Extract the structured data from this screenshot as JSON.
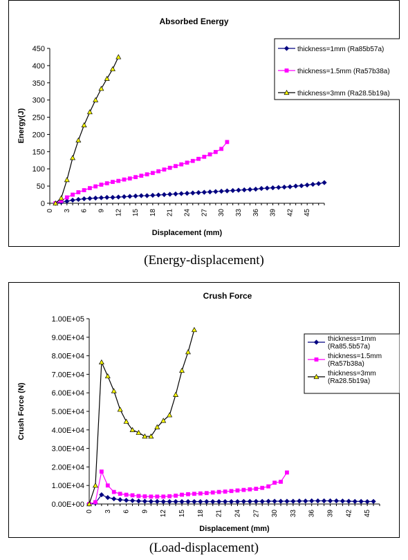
{
  "captions": {
    "energy": "(Energy-displacement)",
    "crush": "(Load-displacement)"
  },
  "chart_data": [
    {
      "type": "line",
      "title": "Absorbed Energy",
      "xlabel": "Displacement (mm)",
      "ylabel": "Energy(J)",
      "xlim": [
        0,
        48
      ],
      "ylim": [
        0,
        450
      ],
      "xticks": [
        "0",
        "3",
        "6",
        "9",
        "12",
        "15",
        "18",
        "21",
        "24",
        "27",
        "30",
        "33",
        "36",
        "39",
        "42",
        "45"
      ],
      "yticks": [
        "0",
        "50",
        "100",
        "150",
        "200",
        "250",
        "300",
        "350",
        "400",
        "450"
      ],
      "legend_position": "right",
      "grid": false,
      "series": [
        {
          "name": "thickness=1mm (Ra85b57a)",
          "color": "#000080",
          "marker": "diamond",
          "x": [
            1,
            2,
            3,
            4,
            5,
            6,
            7,
            8,
            9,
            10,
            11,
            12,
            13,
            14,
            15,
            16,
            17,
            18,
            19,
            20,
            21,
            22,
            23,
            24,
            25,
            26,
            27,
            28,
            29,
            30,
            31,
            32,
            33,
            34,
            35,
            36,
            37,
            38,
            39,
            40,
            41,
            42,
            43,
            44,
            45,
            46,
            47,
            48
          ],
          "y": [
            0,
            3,
            6,
            9,
            11,
            13,
            14,
            15,
            16,
            17,
            17,
            18,
            19,
            20,
            21,
            22,
            22,
            23,
            24,
            25,
            26,
            27,
            28,
            29,
            30,
            31,
            32,
            33,
            34,
            35,
            36,
            37,
            38,
            39,
            40,
            41,
            43,
            44,
            45,
            46,
            47,
            48,
            50,
            51,
            53,
            55,
            57,
            60
          ]
        },
        {
          "name": "thickness=1.5mm (Ra57b38a)",
          "color": "#ff00ff",
          "marker": "square",
          "x": [
            1,
            2,
            3,
            4,
            5,
            6,
            7,
            8,
            9,
            10,
            11,
            12,
            13,
            14,
            15,
            16,
            17,
            18,
            19,
            20,
            21,
            22,
            23,
            24,
            25,
            26,
            27,
            28,
            29,
            30,
            31
          ],
          "y": [
            0,
            7,
            17,
            25,
            32,
            38,
            44,
            49,
            54,
            58,
            62,
            65,
            69,
            72,
            76,
            80,
            84,
            88,
            93,
            98,
            103,
            108,
            113,
            118,
            123,
            129,
            135,
            142,
            149,
            158,
            178
          ]
        },
        {
          "name": "thickness=3mm (Ra28.5b19a)",
          "color": "#ffff00",
          "line_color": "#000000",
          "marker": "triangle",
          "x": [
            1,
            2,
            3,
            4,
            5,
            6,
            7,
            8,
            9,
            10,
            11,
            12
          ],
          "y": [
            0,
            15,
            68,
            132,
            183,
            227,
            265,
            300,
            333,
            362,
            390,
            425
          ]
        }
      ]
    },
    {
      "type": "line",
      "title": "Crush Force",
      "xlabel": "Displacement (mm)",
      "ylabel": "Crush Force (N)",
      "xlim": [
        0,
        47
      ],
      "ylim": [
        0,
        100000
      ],
      "xticks": [
        "0",
        "3",
        "6",
        "9",
        "12",
        "15",
        "18",
        "21",
        "24",
        "27",
        "30",
        "33",
        "36",
        "39",
        "42",
        "45"
      ],
      "yticks": [
        "0.00E+00",
        "1.00E+04",
        "2.00E+04",
        "3.00E+04",
        "4.00E+04",
        "5.00E+04",
        "6.00E+04",
        "7.00E+04",
        "8.00E+04",
        "9.00E+04",
        "1.00E+05"
      ],
      "legend_position": "right",
      "grid": false,
      "series": [
        {
          "name": "thickness=1mm (Ra85.5b57a)",
          "color": "#000080",
          "marker": "diamond",
          "x": [
            0,
            1,
            2,
            3,
            4,
            5,
            6,
            7,
            8,
            9,
            10,
            11,
            12,
            13,
            14,
            15,
            16,
            17,
            18,
            19,
            20,
            21,
            22,
            23,
            24,
            25,
            26,
            27,
            28,
            29,
            30,
            31,
            32,
            33,
            34,
            35,
            36,
            37,
            38,
            39,
            40,
            41,
            42,
            43,
            44,
            45,
            46
          ],
          "y": [
            0,
            500,
            5000,
            3500,
            2800,
            2300,
            2000,
            1800,
            1600,
            1500,
            1400,
            1400,
            1300,
            1300,
            1300,
            1300,
            1300,
            1300,
            1300,
            1300,
            1300,
            1300,
            1300,
            1300,
            1300,
            1400,
            1400,
            1400,
            1400,
            1500,
            1500,
            1500,
            1500,
            1500,
            1600,
            1600,
            1700,
            1700,
            1700,
            1700,
            1700,
            1600,
            1500,
            1400,
            1400,
            1300,
            1400
          ]
        },
        {
          "name": "thickness=1.5mm (Ra57b38a)",
          "color": "#ff00ff",
          "marker": "square",
          "x": [
            0,
            1,
            2,
            3,
            4,
            5,
            6,
            7,
            8,
            9,
            10,
            11,
            12,
            13,
            14,
            15,
            16,
            17,
            18,
            19,
            20,
            21,
            22,
            23,
            24,
            25,
            26,
            27,
            28,
            29,
            30,
            31,
            32
          ],
          "y": [
            0,
            1000,
            17500,
            10000,
            6500,
            5500,
            5000,
            4700,
            4300,
            4100,
            4000,
            4000,
            4000,
            4200,
            4500,
            5000,
            5300,
            5500,
            5700,
            5900,
            6200,
            6500,
            6700,
            7000,
            7300,
            7600,
            7900,
            8200,
            8700,
            9500,
            11500,
            12000,
            17000
          ]
        },
        {
          "name": "thickness=3mm (Ra28.5b19a)",
          "color": "#ffff00",
          "line_color": "#000000",
          "marker": "triangle",
          "x": [
            0,
            1,
            2,
            3,
            4,
            5,
            6,
            7,
            8,
            9,
            10,
            11,
            12,
            13,
            14,
            15,
            16,
            17
          ],
          "y": [
            0,
            10000,
            76500,
            69000,
            61000,
            51000,
            44500,
            40000,
            38500,
            36500,
            36500,
            41500,
            45000,
            48000,
            59000,
            72000,
            82000,
            94000
          ]
        }
      ]
    }
  ]
}
